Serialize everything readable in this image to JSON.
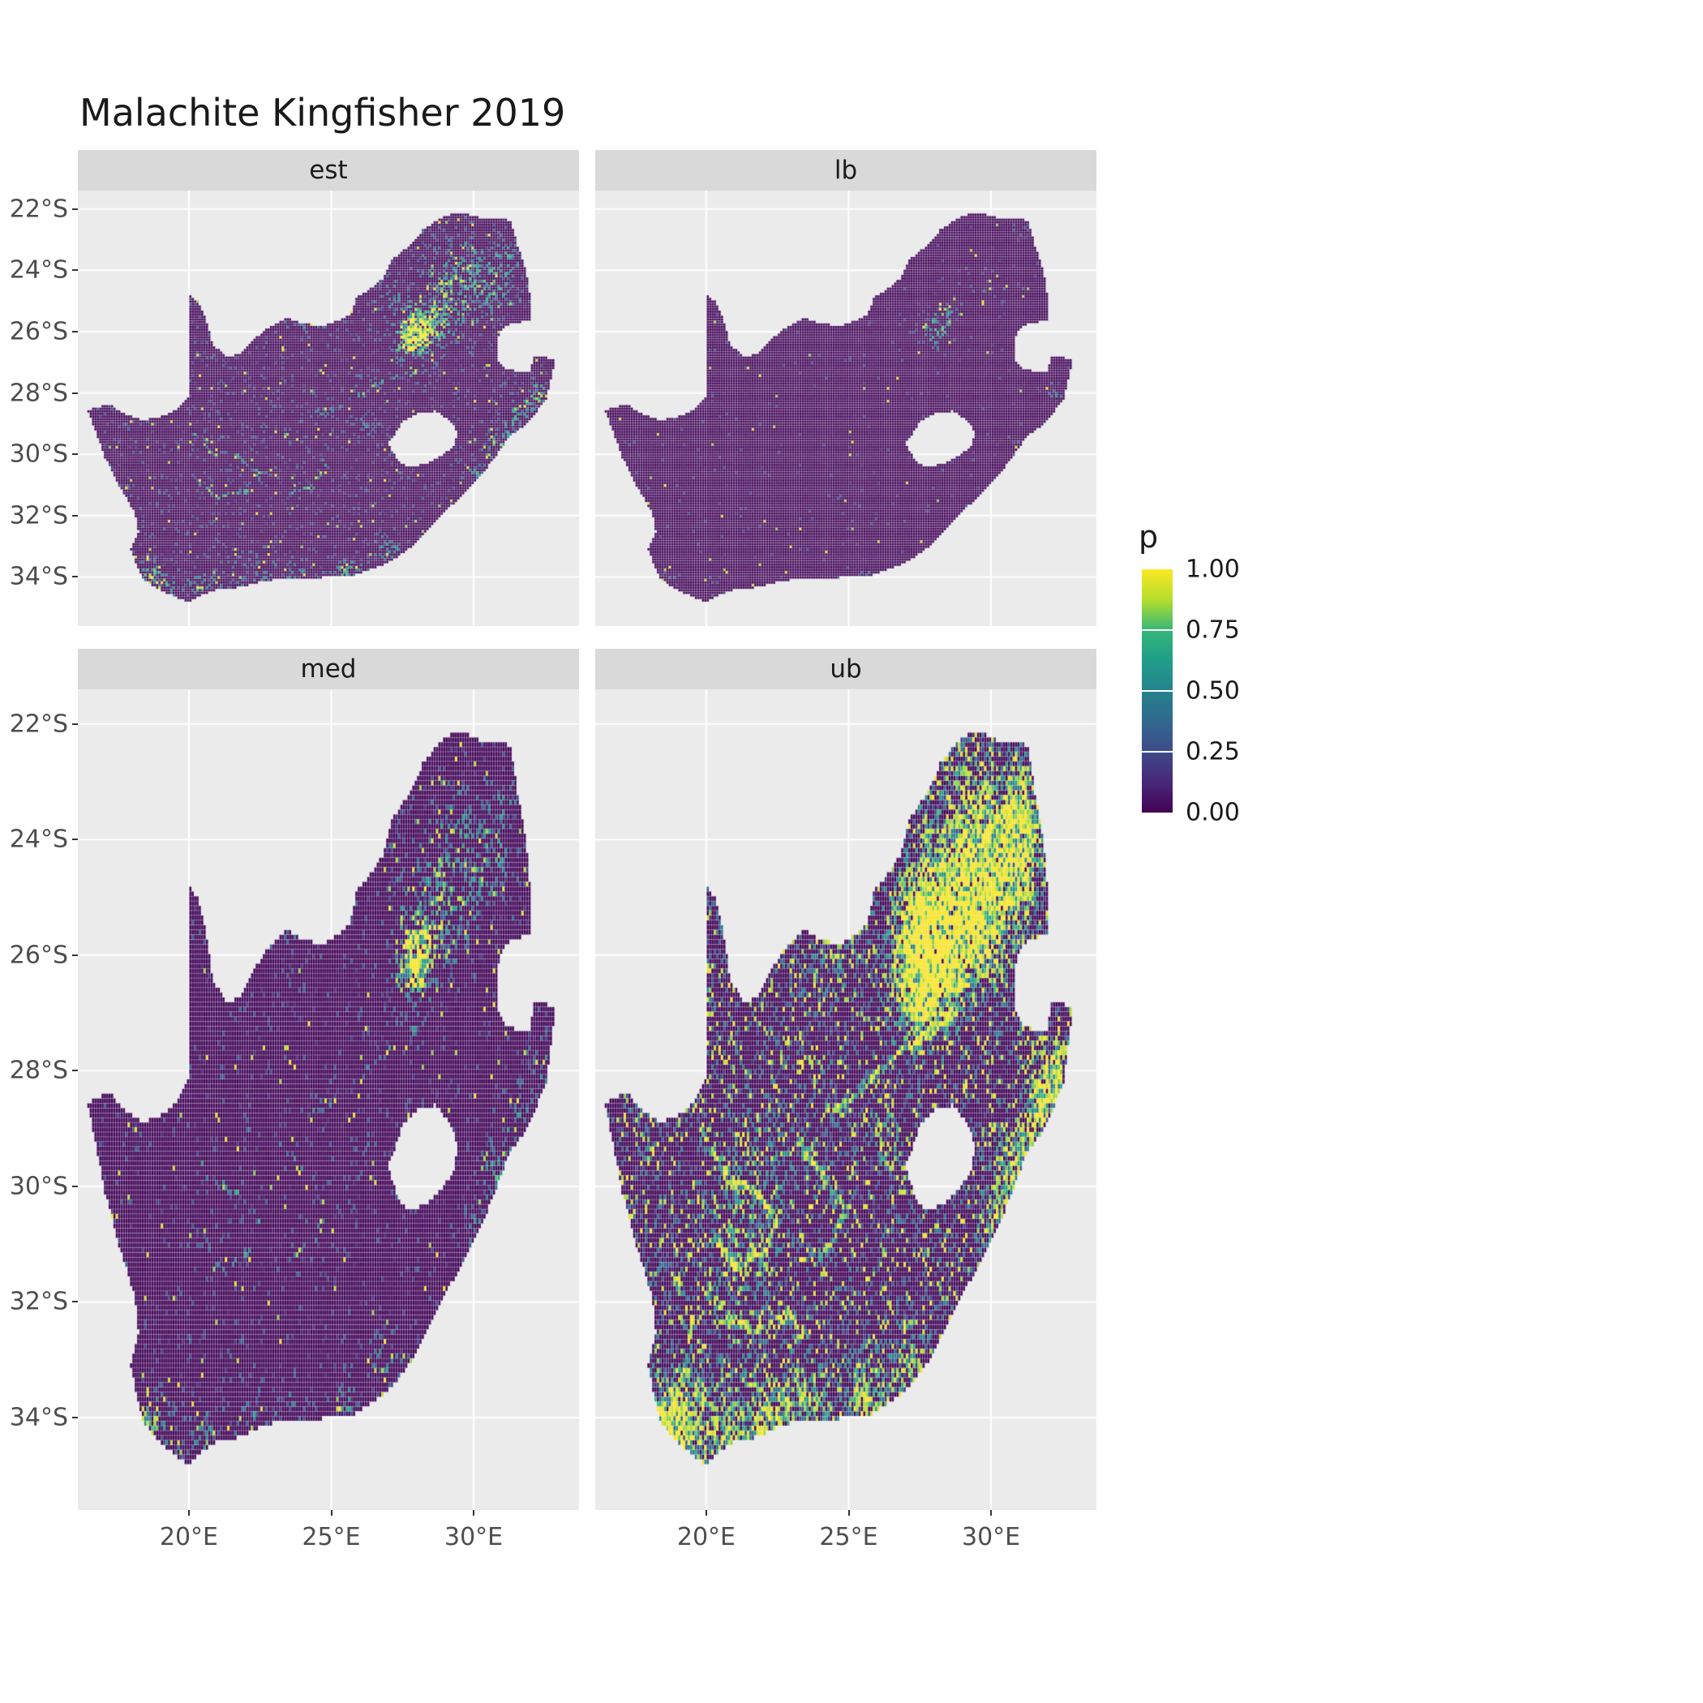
{
  "title": "Malachite Kingfisher 2019",
  "legend": {
    "title": "p",
    "labels": [
      "1.00",
      "0.75",
      "0.50",
      "0.25",
      "0.00"
    ],
    "values": [
      1.0,
      0.75,
      0.5,
      0.25,
      0.0
    ],
    "tick_values": [
      0.75,
      0.5,
      0.25
    ]
  },
  "axes": {
    "x_labels": [
      "20°E",
      "25°E",
      "30°E"
    ],
    "x_values": [
      20,
      25,
      30
    ],
    "y_labels": [
      "22°S",
      "24°S",
      "26°S",
      "28°S",
      "30°S",
      "32°S",
      "34°S"
    ],
    "y_values": [
      -22,
      -24,
      -26,
      -28,
      -30,
      -32,
      -34
    ]
  },
  "colors": {
    "panel_bg": "#EBEBEB",
    "strip_bg": "#D9D9D9",
    "grid": "#FFFFFF",
    "axis_text": "#4D4D4D",
    "tick_mark": "#333333",
    "title_text": "#1A1A1A",
    "viridis_stops": [
      [
        0.0,
        "#440154"
      ],
      [
        0.125,
        "#482878"
      ],
      [
        0.25,
        "#3E4A89"
      ],
      [
        0.375,
        "#31688E"
      ],
      [
        0.5,
        "#26828E"
      ],
      [
        0.625,
        "#1F9E89"
      ],
      [
        0.75,
        "#35B779"
      ],
      [
        0.875,
        "#B4DE2C"
      ],
      [
        1.0,
        "#FDE725"
      ]
    ]
  },
  "chart_data": {
    "type": "heatmap",
    "subtype": "faceted probability raster map of South Africa",
    "variable": "p",
    "value_range": [
      0,
      1
    ],
    "palette": "viridis",
    "cell_deg": 0.0833,
    "extent": {
      "lon_min": 16.1,
      "lon_max": 33.7,
      "lat_min": -35.6,
      "lat_max": -21.4
    },
    "region": "South Africa (hole = Lesotho, notch = Eswatini)",
    "outline": [
      [
        19.98,
        -24.75
      ],
      [
        20.35,
        -25.05
      ],
      [
        20.7,
        -25.85
      ],
      [
        20.85,
        -26.45
      ],
      [
        21.4,
        -26.85
      ],
      [
        21.9,
        -26.67
      ],
      [
        22.35,
        -26.2
      ],
      [
        22.85,
        -25.85
      ],
      [
        23.45,
        -25.55
      ],
      [
        24.05,
        -25.75
      ],
      [
        24.75,
        -25.8
      ],
      [
        25.35,
        -25.6
      ],
      [
        25.65,
        -25.47
      ],
      [
        25.9,
        -24.9
      ],
      [
        26.3,
        -24.65
      ],
      [
        26.85,
        -24.25
      ],
      [
        27.15,
        -23.65
      ],
      [
        27.8,
        -23.15
      ],
      [
        28.25,
        -22.65
      ],
      [
        29.05,
        -22.2
      ],
      [
        29.65,
        -22.15
      ],
      [
        30.25,
        -22.3
      ],
      [
        31.05,
        -22.3
      ],
      [
        31.3,
        -22.4
      ],
      [
        31.55,
        -23.2
      ],
      [
        31.8,
        -23.9
      ],
      [
        31.95,
        -24.5
      ],
      [
        32.0,
        -25.1
      ],
      [
        32.05,
        -25.65
      ],
      [
        31.4,
        -25.72
      ],
      [
        30.95,
        -25.95
      ],
      [
        30.8,
        -26.45
      ],
      [
        30.85,
        -26.95
      ],
      [
        31.1,
        -27.2
      ],
      [
        31.6,
        -27.3
      ],
      [
        31.97,
        -27.31
      ],
      [
        32.13,
        -26.85
      ],
      [
        32.9,
        -26.86
      ],
      [
        32.55,
        -28.2
      ],
      [
        32.0,
        -28.9
      ],
      [
        31.25,
        -29.45
      ],
      [
        30.65,
        -30.25
      ],
      [
        29.9,
        -31.05
      ],
      [
        29.2,
        -31.7
      ],
      [
        28.55,
        -32.3
      ],
      [
        27.85,
        -33.0
      ],
      [
        27.1,
        -33.5
      ],
      [
        26.4,
        -33.75
      ],
      [
        25.65,
        -34.0
      ],
      [
        25.0,
        -33.96
      ],
      [
        24.2,
        -34.1
      ],
      [
        23.35,
        -34.05
      ],
      [
        22.55,
        -34.15
      ],
      [
        21.75,
        -34.35
      ],
      [
        20.8,
        -34.45
      ],
      [
        20.0,
        -34.82
      ],
      [
        19.4,
        -34.6
      ],
      [
        18.85,
        -34.35
      ],
      [
        18.45,
        -34.1
      ],
      [
        18.3,
        -33.9
      ],
      [
        17.95,
        -33.1
      ],
      [
        18.25,
        -32.55
      ],
      [
        18.1,
        -31.9
      ],
      [
        17.6,
        -31.1
      ],
      [
        17.05,
        -30.1
      ],
      [
        16.75,
        -29.3
      ],
      [
        16.45,
        -28.58
      ],
      [
        17.2,
        -28.35
      ],
      [
        17.75,
        -28.7
      ],
      [
        18.4,
        -28.9
      ],
      [
        19.15,
        -28.75
      ],
      [
        19.6,
        -28.5
      ],
      [
        19.98,
        -28.1
      ]
    ],
    "hole_lesotho": [
      [
        27.55,
        -28.9
      ],
      [
        28.1,
        -28.65
      ],
      [
        28.7,
        -28.6
      ],
      [
        29.15,
        -28.9
      ],
      [
        29.45,
        -29.3
      ],
      [
        29.3,
        -29.75
      ],
      [
        28.9,
        -30.05
      ],
      [
        28.35,
        -30.3
      ],
      [
        27.75,
        -30.45
      ],
      [
        27.35,
        -30.2
      ],
      [
        27.0,
        -29.65
      ],
      [
        27.3,
        -29.25
      ]
    ],
    "facets": [
      {
        "label": "est",
        "seed": 11,
        "base": 0.09,
        "vfloor": 0.35,
        "yellow": 0.1,
        "hotspots": [
          [
            28.0,
            -26.05,
            0.55,
            1.1
          ],
          [
            28.35,
            -25.65,
            0.7,
            0.5
          ],
          [
            27.65,
            -26.45,
            0.5,
            0.4
          ],
          [
            29.45,
            -23.9,
            1.1,
            0.3
          ],
          [
            30.6,
            -24.6,
            0.8,
            0.35
          ],
          [
            31.1,
            -23.55,
            0.6,
            0.3
          ],
          [
            29.3,
            -25.55,
            0.8,
            0.25
          ],
          [
            28.9,
            -24.6,
            0.7,
            0.3
          ],
          [
            30.9,
            -29.8,
            0.55,
            0.45
          ],
          [
            31.6,
            -28.9,
            0.5,
            0.4
          ],
          [
            32.3,
            -28.05,
            0.45,
            0.5
          ],
          [
            30.2,
            -30.7,
            0.4,
            0.35
          ],
          [
            18.6,
            -33.95,
            0.45,
            0.55
          ],
          [
            19.1,
            -34.4,
            0.5,
            0.35
          ],
          [
            20.6,
            -34.35,
            0.7,
            0.3
          ],
          [
            22.2,
            -34.05,
            0.6,
            0.3
          ],
          [
            23.4,
            -33.95,
            0.5,
            0.3
          ],
          [
            25.55,
            -33.85,
            0.45,
            0.4
          ],
          [
            27.0,
            -33.0,
            0.45,
            0.3
          ],
          [
            26.2,
            -29.12,
            0.3,
            0.35
          ],
          [
            24.0,
            -25.8,
            0.5,
            0.2
          ],
          [
            27.2,
            -25.0,
            0.6,
            0.2
          ]
        ],
        "lines": [
          {
            "s": 0.28,
            "pts": [
              [
                19.9,
                -29.1
              ],
              [
                20.8,
                -29.9
              ],
              [
                21.7,
                -30.1
              ],
              [
                22.5,
                -30.6
              ],
              [
                22.0,
                -31.2
              ],
              [
                21.0,
                -31.4
              ],
              [
                20.3,
                -30.9
              ]
            ]
          },
          {
            "s": 0.25,
            "pts": [
              [
                23.2,
                -29.2
              ],
              [
                24.1,
                -29.8
              ],
              [
                24.9,
                -30.4
              ],
              [
                24.3,
                -31.1
              ],
              [
                23.3,
                -31.3
              ]
            ]
          },
          {
            "s": 0.25,
            "pts": [
              [
                28.9,
                -26.9
              ],
              [
                27.9,
                -27.35
              ],
              [
                26.8,
                -27.65
              ],
              [
                25.8,
                -28.15
              ],
              [
                24.9,
                -28.55
              ],
              [
                24.1,
                -28.75
              ]
            ]
          }
        ]
      },
      {
        "label": "lb",
        "seed": 23,
        "base": 0.018,
        "vfloor": 0.3,
        "yellow": 0.2,
        "hotspots": [
          [
            28.0,
            -26.0,
            0.5,
            0.5
          ],
          [
            28.4,
            -25.5,
            0.5,
            0.25
          ],
          [
            30.0,
            -24.2,
            0.8,
            0.12
          ],
          [
            32.3,
            -28.0,
            0.35,
            0.3
          ],
          [
            31.0,
            -29.8,
            0.4,
            0.2
          ],
          [
            18.6,
            -34.0,
            0.3,
            0.3
          ],
          [
            25.6,
            -33.9,
            0.3,
            0.2
          ],
          [
            20.6,
            -34.4,
            0.5,
            0.15
          ],
          [
            31.3,
            -22.7,
            0.5,
            0.15
          ]
        ],
        "lines": []
      },
      {
        "label": "med",
        "seed": 37,
        "base": 0.065,
        "vfloor": 0.35,
        "yellow": 0.12,
        "hotspots": [
          [
            28.0,
            -26.05,
            0.55,
            0.95
          ],
          [
            28.35,
            -25.65,
            0.7,
            0.42
          ],
          [
            27.65,
            -26.45,
            0.5,
            0.34
          ],
          [
            29.45,
            -23.9,
            1.1,
            0.26
          ],
          [
            30.6,
            -24.6,
            0.8,
            0.3
          ],
          [
            31.1,
            -23.55,
            0.6,
            0.26
          ],
          [
            29.3,
            -25.55,
            0.8,
            0.2
          ],
          [
            28.9,
            -24.6,
            0.7,
            0.25
          ],
          [
            30.9,
            -29.8,
            0.55,
            0.4
          ],
          [
            31.6,
            -28.9,
            0.5,
            0.34
          ],
          [
            32.3,
            -28.05,
            0.45,
            0.44
          ],
          [
            30.2,
            -30.7,
            0.4,
            0.3
          ],
          [
            18.6,
            -33.95,
            0.45,
            0.48
          ],
          [
            19.1,
            -34.4,
            0.5,
            0.3
          ],
          [
            20.6,
            -34.35,
            0.7,
            0.26
          ],
          [
            22.2,
            -34.05,
            0.6,
            0.26
          ],
          [
            23.4,
            -33.95,
            0.5,
            0.26
          ],
          [
            25.55,
            -33.85,
            0.45,
            0.34
          ],
          [
            27.0,
            -33.0,
            0.45,
            0.26
          ],
          [
            26.2,
            -29.12,
            0.3,
            0.3
          ],
          [
            24.0,
            -25.8,
            0.5,
            0.17
          ],
          [
            27.2,
            -25.0,
            0.6,
            0.17
          ]
        ],
        "lines": [
          {
            "s": 0.2,
            "pts": [
              [
                19.9,
                -29.1
              ],
              [
                20.8,
                -29.9
              ],
              [
                21.7,
                -30.1
              ],
              [
                22.5,
                -30.6
              ],
              [
                22.0,
                -31.2
              ],
              [
                21.0,
                -31.4
              ],
              [
                20.3,
                -30.9
              ]
            ]
          },
          {
            "s": 0.18,
            "pts": [
              [
                23.2,
                -29.2
              ],
              [
                24.1,
                -29.8
              ],
              [
                24.9,
                -30.4
              ],
              [
                24.3,
                -31.1
              ],
              [
                23.3,
                -31.3
              ]
            ]
          },
          {
            "s": 0.18,
            "pts": [
              [
                28.9,
                -26.9
              ],
              [
                27.9,
                -27.35
              ],
              [
                26.8,
                -27.65
              ],
              [
                25.8,
                -28.15
              ],
              [
                24.9,
                -28.55
              ],
              [
                24.1,
                -28.75
              ]
            ]
          }
        ]
      },
      {
        "label": "ub",
        "seed": 53,
        "base": 0.3,
        "vfloor": 0.5,
        "yellow": 0.3,
        "hotspots": [
          [
            28.0,
            -26.0,
            1.0,
            1.3
          ],
          [
            28.6,
            -25.3,
            1.2,
            0.7
          ],
          [
            27.3,
            -26.6,
            0.8,
            0.6
          ],
          [
            29.6,
            -23.8,
            1.3,
            0.55
          ],
          [
            30.8,
            -24.5,
            1.0,
            0.6
          ],
          [
            31.2,
            -23.5,
            0.8,
            0.5
          ],
          [
            29.8,
            -25.7,
            0.9,
            0.45
          ],
          [
            31.0,
            -29.7,
            0.8,
            0.65
          ],
          [
            31.8,
            -28.7,
            0.7,
            0.6
          ],
          [
            32.3,
            -28.0,
            0.6,
            0.7
          ],
          [
            30.3,
            -30.8,
            0.6,
            0.5
          ],
          [
            18.7,
            -34.0,
            0.7,
            0.8
          ],
          [
            19.3,
            -34.45,
            0.7,
            0.6
          ],
          [
            20.8,
            -34.35,
            0.9,
            0.55
          ],
          [
            22.3,
            -34.05,
            0.8,
            0.5
          ],
          [
            23.5,
            -33.95,
            0.7,
            0.5
          ],
          [
            25.6,
            -33.8,
            0.7,
            0.6
          ],
          [
            27.1,
            -33.1,
            0.6,
            0.5
          ],
          [
            26.2,
            -29.1,
            0.5,
            0.4
          ],
          [
            24.5,
            -25.7,
            0.8,
            0.35
          ],
          [
            27.3,
            -25.1,
            0.8,
            0.35
          ],
          [
            22.0,
            -29.8,
            1.2,
            0.18
          ],
          [
            21.0,
            -31.3,
            1.0,
            0.22
          ]
        ],
        "lines": [
          {
            "s": 0.5,
            "pts": [
              [
                19.9,
                -29.1
              ],
              [
                20.8,
                -29.9
              ],
              [
                21.7,
                -30.1
              ],
              [
                22.5,
                -30.6
              ],
              [
                22.0,
                -31.2
              ],
              [
                21.0,
                -31.4
              ],
              [
                20.3,
                -30.9
              ]
            ]
          },
          {
            "s": 0.45,
            "pts": [
              [
                23.2,
                -29.2
              ],
              [
                24.1,
                -29.8
              ],
              [
                24.9,
                -30.4
              ],
              [
                24.3,
                -31.1
              ],
              [
                23.3,
                -31.3
              ]
            ]
          },
          {
            "s": 0.45,
            "pts": [
              [
                28.9,
                -26.9
              ],
              [
                27.9,
                -27.35
              ],
              [
                26.8,
                -27.65
              ],
              [
                25.8,
                -28.15
              ],
              [
                24.9,
                -28.55
              ],
              [
                24.1,
                -28.75
              ]
            ]
          },
          {
            "s": 0.4,
            "pts": [
              [
                20.0,
                -31.8
              ],
              [
                20.8,
                -32.3
              ],
              [
                21.8,
                -32.5
              ],
              [
                22.8,
                -32.2
              ],
              [
                23.6,
                -32.6
              ]
            ]
          },
          {
            "s": 0.4,
            "pts": [
              [
                18.9,
                -31.6
              ],
              [
                19.5,
                -32.3
              ],
              [
                19.3,
                -33.2
              ],
              [
                19.9,
                -33.7
              ]
            ]
          }
        ]
      }
    ]
  }
}
